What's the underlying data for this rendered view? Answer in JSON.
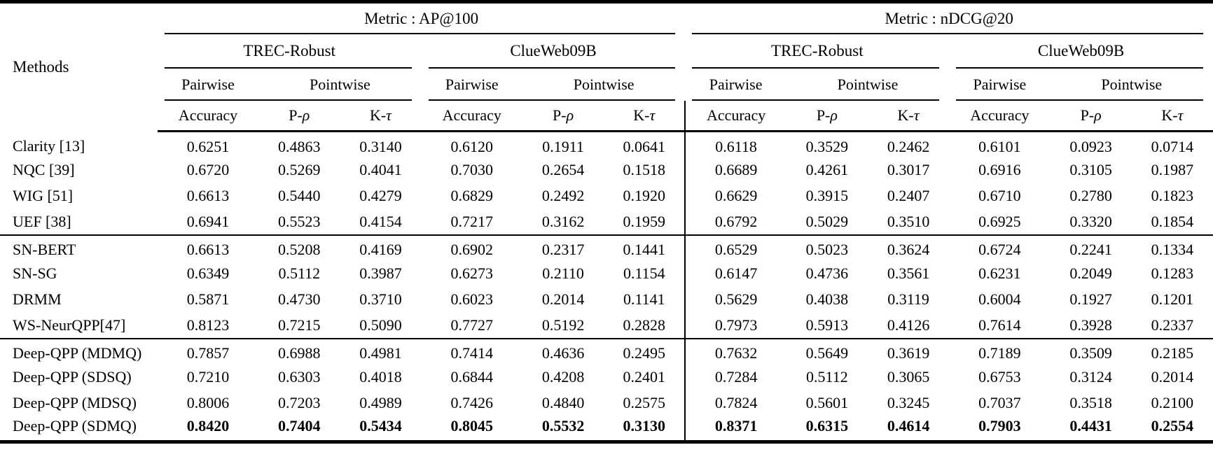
{
  "header": {
    "methods": "Methods",
    "metric_ap": "Metric : AP@100",
    "metric_ndcg": "Metric : nDCG@20",
    "dataset_trec": "TREC-Robust",
    "dataset_clueweb": "ClueWeb09B",
    "pairwise": "Pairwise",
    "pointwise": "Pointwise",
    "accuracy": "Accuracy",
    "p_prefix": "P-",
    "rho": "ρ",
    "k_prefix": "K-",
    "tau": "τ"
  },
  "rows": [
    {
      "method": "Clarity [13]",
      "group_start": false,
      "bold": false,
      "values": [
        "0.6251",
        "0.4863",
        "0.3140",
        "0.6120",
        "0.1911",
        "0.0641",
        "0.6118",
        "0.3529",
        "0.2462",
        "0.6101",
        "0.0923",
        "0.0714"
      ]
    },
    {
      "method": "NQC [39]",
      "group_start": false,
      "bold": false,
      "values": [
        "0.6720",
        "0.5269",
        "0.4041",
        "0.7030",
        "0.2654",
        "0.1518",
        "0.6689",
        "0.4261",
        "0.3017",
        "0.6916",
        "0.3105",
        "0.1987"
      ]
    },
    {
      "method": "WIG [51]",
      "group_start": false,
      "bold": false,
      "values": [
        "0.6613",
        "0.5440",
        "0.4279",
        "0.6829",
        "0.2492",
        "0.1920",
        "0.6629",
        "0.3915",
        "0.2407",
        "0.6710",
        "0.2780",
        "0.1823"
      ]
    },
    {
      "method": "UEF [38]",
      "group_start": false,
      "bold": false,
      "values": [
        "0.6941",
        "0.5523",
        "0.4154",
        "0.7217",
        "0.3162",
        "0.1959",
        "0.6792",
        "0.5029",
        "0.3510",
        "0.6925",
        "0.3320",
        "0.1854"
      ]
    },
    {
      "method": "SN-BERT",
      "group_start": true,
      "bold": false,
      "values": [
        "0.6613",
        "0.5208",
        "0.4169",
        "0.6902",
        "0.2317",
        "0.1441",
        "0.6529",
        "0.5023",
        "0.3624",
        "0.6724",
        "0.2241",
        "0.1334"
      ]
    },
    {
      "method": "SN-SG",
      "group_start": false,
      "bold": false,
      "values": [
        "0.6349",
        "0.5112",
        "0.3987",
        "0.6273",
        "0.2110",
        "0.1154",
        "0.6147",
        "0.4736",
        "0.3561",
        "0.6231",
        "0.2049",
        "0.1283"
      ]
    },
    {
      "method": "DRMM",
      "group_start": false,
      "bold": false,
      "values": [
        "0.5871",
        "0.4730",
        "0.3710",
        "0.6023",
        "0.2014",
        "0.1141",
        "0.5629",
        "0.4038",
        "0.3119",
        "0.6004",
        "0.1927",
        "0.1201"
      ]
    },
    {
      "method": "WS-NeurQPP[47]",
      "group_start": false,
      "bold": false,
      "values": [
        "0.8123",
        "0.7215",
        "0.5090",
        "0.7727",
        "0.5192",
        "0.2828",
        "0.7973",
        "0.5913",
        "0.4126",
        "0.7614",
        "0.3928",
        "0.2337"
      ]
    },
    {
      "method": "Deep-QPP (MDMQ)",
      "group_start": true,
      "bold": false,
      "values": [
        "0.7857",
        "0.6988",
        "0.4981",
        "0.7414",
        "0.4636",
        "0.2495",
        "0.7632",
        "0.5649",
        "0.3619",
        "0.7189",
        "0.3509",
        "0.2185"
      ]
    },
    {
      "method": "Deep-QPP (SDSQ)",
      "group_start": false,
      "bold": false,
      "values": [
        "0.7210",
        "0.6303",
        "0.4018",
        "0.6844",
        "0.4208",
        "0.2401",
        "0.7284",
        "0.5112",
        "0.3065",
        "0.6753",
        "0.3124",
        "0.2014"
      ]
    },
    {
      "method": "Deep-QPP (MDSQ)",
      "group_start": false,
      "bold": false,
      "values": [
        "0.8006",
        "0.7203",
        "0.4989",
        "0.7426",
        "0.4840",
        "0.2575",
        "0.7824",
        "0.5601",
        "0.3245",
        "0.7037",
        "0.3518",
        "0.2100"
      ]
    },
    {
      "method": "Deep-QPP (SDMQ)",
      "group_start": false,
      "bold": true,
      "values": [
        "0.8420",
        "0.7404",
        "0.5434",
        "0.8045",
        "0.5532",
        "0.3130",
        "0.8371",
        "0.6315",
        "0.4614",
        "0.7903",
        "0.4431",
        "0.2554"
      ]
    }
  ]
}
